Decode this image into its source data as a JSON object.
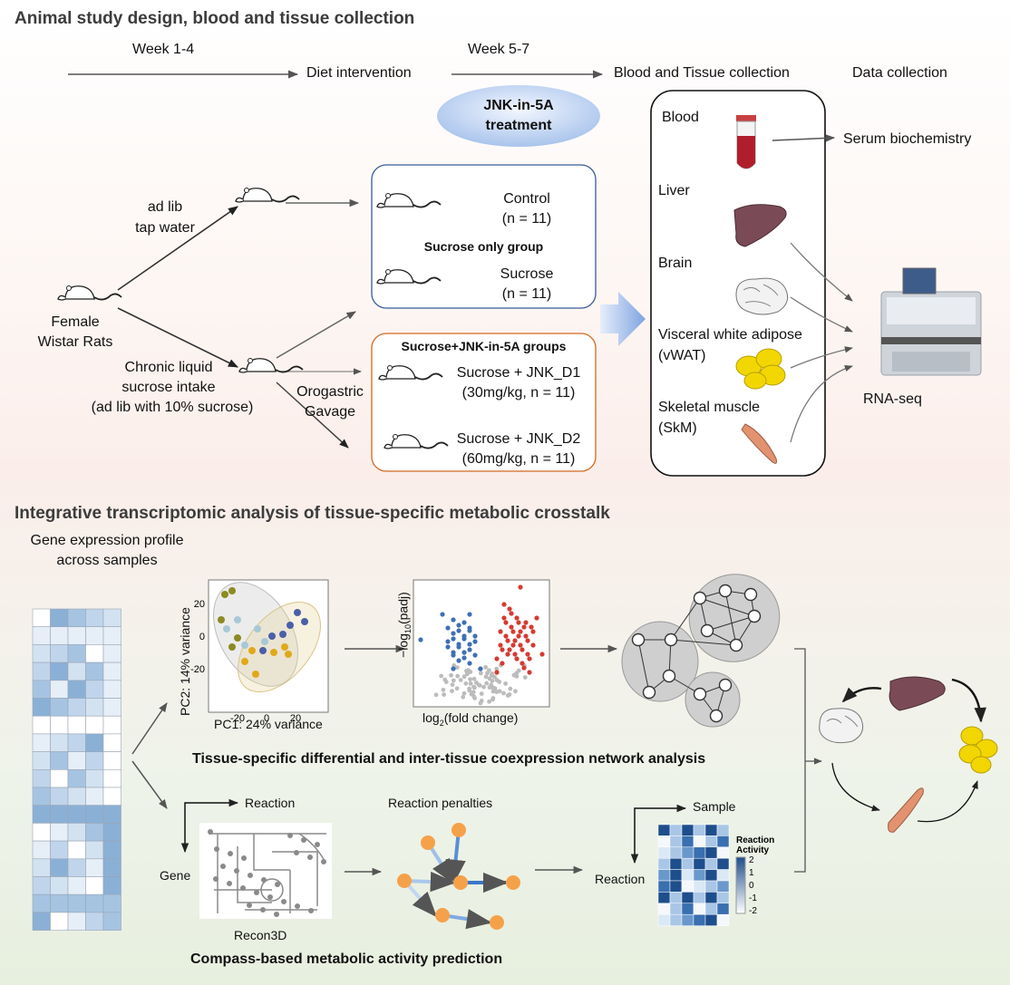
{
  "sections": {
    "top_title": "Animal study design, blood and tissue collection",
    "bottom_title": "Integrative transcriptomic analysis of tissue-specific metabolic crosstalk"
  },
  "timeline": {
    "week1": "Week 1-4",
    "week2": "Week 5-7",
    "diet": "Diet  intervention",
    "collection": "Blood and Tissue collection",
    "data": "Data collection"
  },
  "treatment": {
    "line1": "JNK-in-5A",
    "line2": "treatment"
  },
  "rats": {
    "female_l1": "Female",
    "female_l2": "Wistar Rats",
    "adlib_l1": "ad lib",
    "adlib_l2": "tap water",
    "chronic_l1": "Chronic liquid",
    "chronic_l2": "sucrose intake",
    "chronic_l3": "(ad lib with 10% sucrose)",
    "gavage_l1": "Orogastric",
    "gavage_l2": "Gavage"
  },
  "groups": {
    "blue_header": "Sucrose only group",
    "control_l1": "Control",
    "control_l2": "(n = 11)",
    "sucrose_l1": "Sucrose",
    "sucrose_l2": "(n = 11)",
    "orange_header": "Sucrose+JNK-in-5A groups",
    "d1_l1": "Sucrose + JNK_D1",
    "d1_l2": "(30mg/kg, n = 11)",
    "d2_l1": "Sucrose + JNK_D2",
    "d2_l2": "(60mg/kg, n = 11)"
  },
  "tissues": {
    "blood": "Blood",
    "liver": "Liver",
    "brain": "Brain",
    "vwat_l1": "Visceral white adipose",
    "vwat_l2": "(vWAT)",
    "skm_l1": "Skeletal muscle",
    "skm_l2": "(SkM)"
  },
  "outputs": {
    "serum": "Serum biochemistry",
    "rnaseq": "RNA-seq"
  },
  "analysis": {
    "gene_expr_l1": "Gene expression profile",
    "gene_expr_l2": "across samples",
    "pca_xlabel": "PC1: 24% variance",
    "pca_ylabel": "PC2: 14% variance",
    "pca_yticks": [
      "20",
      "0",
      "-20"
    ],
    "pca_xticks": [
      "-20",
      "0",
      "20"
    ],
    "volcano_ylabel": "−log10(padj)",
    "volcano_xlabel": "log2(fold change)",
    "coexp_caption": "Tissue-specific differential and inter-tissue  coexpression network analysis",
    "reaction_top": "Reaction",
    "gene": "Gene",
    "recon3d": "Recon3D",
    "penalties": "Reaction penalties",
    "sample": "Sample",
    "reaction_left": "Reaction",
    "legend_title_l1": "Reaction",
    "legend_title_l2": "Activity",
    "legend_ticks": [
      "2",
      "1",
      "0",
      "-1",
      "-2"
    ],
    "compass_caption": "Compass-based metabolic activity prediction"
  },
  "colors": {
    "blue_box": "#3a5a9c",
    "orange_box": "#d2691e",
    "liver": "#7a4b56",
    "adipose": "#f2d600",
    "blood": "#b01e2e",
    "pca_olive": "#8c8a23",
    "pca_blue": "#4b5fa8",
    "pca_gold": "#e0a91a",
    "pca_lightblue": "#a8c8d8",
    "volcano_red": "#d63a32",
    "volcano_blue": "#3f6fb5"
  }
}
